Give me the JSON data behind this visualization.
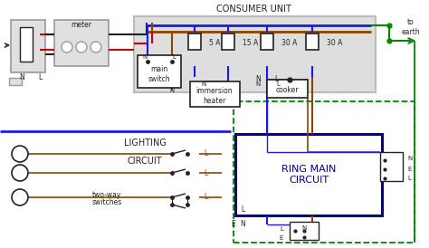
{
  "colors": {
    "black": "#222222",
    "red": "#cc0000",
    "blue": "#1a1aee",
    "brown": "#8B4500",
    "green": "#008800",
    "gray": "#999999",
    "light_gray": "#bbbbbb",
    "dark_navy": "#00008B",
    "white": "#ffffff"
  },
  "fuse_labels": [
    "5 A",
    "15 A",
    "30 A",
    "30 A"
  ],
  "consumer_unit_title": "CONSUMER UNIT",
  "meter_label": "meter",
  "main_switch_label": "main\nswitch",
  "immersion_label": "immersion\nheater",
  "cooker_label": "cooker",
  "ring_main_label": "RING MAIN\nCIRCUIT",
  "lighting_label": "LIGHTING",
  "circuit_label": "CIRCUIT",
  "two_way_label": "two-way",
  "switches_label": "switches",
  "to_earth_label": "to\nearth"
}
